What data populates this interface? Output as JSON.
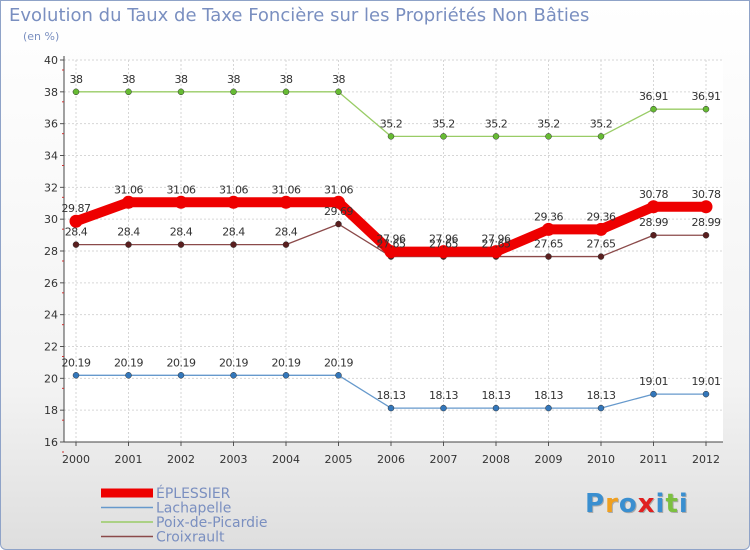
{
  "chart_data": {
    "type": "line",
    "title": "Evolution du Taux de Taxe Foncière sur les Propriétés Non Bâties",
    "subtitle": "(en %)",
    "xlabel": "",
    "ylabel": "",
    "categories": [
      "2000",
      "2001",
      "2002",
      "2003",
      "2004",
      "2005",
      "2006",
      "2007",
      "2008",
      "2009",
      "2010",
      "2011",
      "2012"
    ],
    "ylim": [
      16,
      40
    ],
    "yticks": [
      16,
      18,
      20,
      22,
      24,
      26,
      28,
      30,
      32,
      34,
      36,
      38,
      40
    ],
    "grid": true,
    "series": [
      {
        "name": "Poix-de-Picardie",
        "color": "#99cc66",
        "marker": "#66bb33",
        "emphasis": false,
        "values": [
          38,
          38,
          38,
          38,
          38,
          38,
          35.2,
          35.2,
          35.2,
          35.2,
          35.2,
          36.91,
          36.91
        ],
        "labels": [
          "38",
          "38",
          "38",
          "38",
          "38",
          "38",
          "35.2",
          "35.2",
          "35.2",
          "35.2",
          "35.2",
          "36.91",
          "36.91"
        ]
      },
      {
        "name": "Croixrault",
        "color": "#8b4a4a",
        "marker": "#5a1f1f",
        "emphasis": false,
        "values": [
          28.4,
          28.4,
          28.4,
          28.4,
          28.4,
          29.69,
          27.65,
          27.65,
          27.65,
          27.65,
          27.65,
          28.99,
          28.99
        ],
        "labels": [
          "28.4",
          "28.4",
          "28.4",
          "28.4",
          "28.4",
          "29.69",
          "27.65",
          "27.65",
          "27.65",
          "27.65",
          "27.65",
          "28.99",
          "28.99"
        ]
      },
      {
        "name": "ÉPLESSIER",
        "color": "#ee0000",
        "marker": "#ee0000",
        "emphasis": true,
        "values": [
          29.87,
          31.06,
          31.06,
          31.06,
          31.06,
          31.06,
          27.96,
          27.96,
          27.96,
          29.36,
          29.36,
          30.78,
          30.78
        ],
        "labels": [
          "29.87",
          "31.06",
          "31.06",
          "31.06",
          "31.06",
          "31.06",
          "27.96",
          "27.96",
          "27.96",
          "29.36",
          "29.36",
          "30.78",
          "30.78"
        ]
      },
      {
        "name": "Lachapelle",
        "color": "#6699cc",
        "marker": "#3377bb",
        "emphasis": false,
        "values": [
          20.19,
          20.19,
          20.19,
          20.19,
          20.19,
          20.19,
          18.13,
          18.13,
          18.13,
          18.13,
          18.13,
          19.01,
          19.01
        ],
        "labels": [
          "20.19",
          "20.19",
          "20.19",
          "20.19",
          "20.19",
          "20.19",
          "18.13",
          "18.13",
          "18.13",
          "18.13",
          "18.13",
          "19.01",
          "19.01"
        ]
      }
    ],
    "legend": {
      "placement": "bottom-left",
      "order": [
        "ÉPLESSIER",
        "Lachapelle",
        "Poix-de-Picardie",
        "Croixrault"
      ]
    }
  },
  "logo": {
    "letters": [
      "P",
      "r",
      "o",
      "x",
      "i",
      "t",
      "i"
    ],
    "colors": [
      "#3a8fd0",
      "#f0a020",
      "#3a8fd0",
      "#e02020",
      "#3a8fd0",
      "#7cc040",
      "#3a8fd0"
    ]
  }
}
